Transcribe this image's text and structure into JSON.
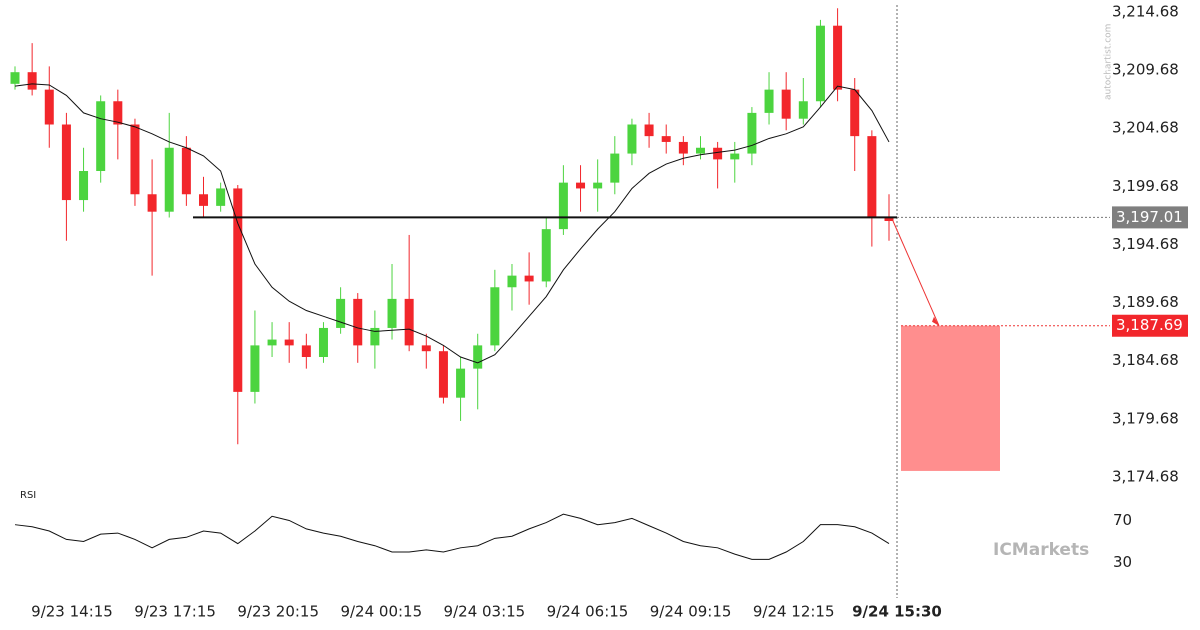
{
  "chart_data": {
    "type": "candlestick",
    "ylim": [
      3173.99,
      3215.71
    ],
    "yticks": [
      {
        "value": 3214.68,
        "label": "3,214.68"
      },
      {
        "value": 3209.68,
        "label": "3,209.68"
      },
      {
        "value": 3204.68,
        "label": "3,204.68"
      },
      {
        "value": 3199.68,
        "label": "3,199.68"
      },
      {
        "value": 3194.68,
        "label": "3,194.68"
      },
      {
        "value": 3189.68,
        "label": "3,189.68"
      },
      {
        "value": 3184.68,
        "label": "3,184.68"
      },
      {
        "value": 3179.68,
        "label": "3,179.68"
      },
      {
        "value": 3174.68,
        "label": "3,174.68"
      }
    ],
    "xlabels": [
      "9/23 14:15",
      "9/23 17:15",
      "9/23 20:15",
      "9/24 00:15",
      "9/24 03:15",
      "9/24 06:15",
      "9/24 09:15",
      "9/24 12:15",
      "9/24 15:30"
    ],
    "up_color": "#4cd43f",
    "down_color": "#f2262b",
    "candles": {
      "open": [
        3208.5,
        3209.5,
        3208,
        3205,
        3198.5,
        3201,
        3207,
        3205,
        3199,
        3197.5,
        3203,
        3199,
        3198,
        3199.5,
        3182,
        3186,
        3186.5,
        3186,
        3185,
        3187.5,
        3190,
        3186,
        3187.5,
        3190,
        3186,
        3185.5,
        3181.5,
        3184,
        3186,
        3191,
        3192,
        3191.5,
        3196,
        3200,
        3199.5,
        3200,
        3202.5,
        3205,
        3204,
        3203.5,
        3202.5,
        3203,
        3202,
        3202.5,
        3206,
        3208,
        3205.5,
        3207,
        3213.5,
        3208,
        3204,
        3197
      ],
      "high": [
        3210,
        3212,
        3210,
        3206,
        3203,
        3207.5,
        3208,
        3205.5,
        3202,
        3206,
        3204,
        3200.5,
        3200,
        3199.8,
        3189,
        3188,
        3188,
        3187,
        3188,
        3191,
        3190.5,
        3189,
        3193,
        3195.5,
        3187,
        3186,
        3185,
        3187,
        3192.5,
        3193,
        3194,
        3197,
        3201.5,
        3201.5,
        3202,
        3204,
        3205.5,
        3206,
        3205,
        3204,
        3204,
        3203.5,
        3203.5,
        3206.5,
        3209.5,
        3209.5,
        3209,
        3214,
        3215,
        3209,
        3204.5,
        3199
      ],
      "low": [
        3208,
        3207.5,
        3203,
        3195,
        3197.5,
        3200,
        3202,
        3198,
        3192,
        3197,
        3198,
        3197,
        3197.5,
        3177.5,
        3181,
        3185,
        3184.5,
        3184,
        3184.5,
        3187,
        3184.5,
        3184,
        3186.5,
        3185.5,
        3184,
        3181,
        3179.5,
        3180.5,
        3185.5,
        3189,
        3189.5,
        3191,
        3195.5,
        3197.5,
        3197.5,
        3199,
        3201.5,
        3203,
        3202.5,
        3201.5,
        3202,
        3199.5,
        3200,
        3201.5,
        3205,
        3204.5,
        3205,
        3206.5,
        3207,
        3201,
        3194.5,
        3195
      ],
      "close": [
        3209.5,
        3208,
        3205,
        3198.5,
        3201,
        3207,
        3205,
        3199,
        3197.5,
        3203,
        3199,
        3198,
        3199.5,
        3182,
        3186,
        3186.5,
        3186,
        3185,
        3187.5,
        3190,
        3186,
        3187.5,
        3190,
        3186,
        3185.5,
        3181.5,
        3184,
        3186,
        3191,
        3192,
        3191.5,
        3196,
        3200,
        3199.5,
        3200,
        3202.5,
        3205,
        3204,
        3203.5,
        3202.5,
        3203,
        3202,
        3202.5,
        3206,
        3208,
        3205.5,
        3207,
        3213.5,
        3208,
        3204,
        3197,
        3196.7
      ]
    },
    "moving_average": [
      3208.3,
      3208.5,
      3208.4,
      3207.5,
      3206,
      3205.5,
      3205.2,
      3204.8,
      3204.2,
      3203.5,
      3203,
      3202.3,
      3201,
      3196.5,
      3193,
      3191,
      3189.8,
      3189,
      3188.5,
      3188,
      3187.5,
      3187.2,
      3187.3,
      3187.4,
      3186.8,
      3186,
      3185,
      3184.5,
      3185.2,
      3186.8,
      3188.5,
      3190.2,
      3192.5,
      3194.3,
      3196,
      3197.5,
      3199.5,
      3200.8,
      3201.6,
      3202.1,
      3202.4,
      3202.6,
      3202.8,
      3203.2,
      3203.8,
      3204.2,
      3204.8,
      3206.5,
      3208.3,
      3208,
      3206.2,
      3203.5
    ],
    "support_level": {
      "value": 3197.01,
      "label": "3,197.01"
    },
    "target": {
      "value": 3187.69,
      "label": "3,187.69"
    },
    "target_range_low": 3175.2,
    "rsi": {
      "label": "RSI",
      "ylim": [
        -0.9,
        99
      ],
      "yticks": [
        70,
        30
      ],
      "values": [
        66,
        64,
        60,
        52,
        50,
        57,
        58,
        52,
        44,
        52,
        54,
        60,
        58,
        48,
        60,
        74,
        70,
        62,
        58,
        55,
        50,
        46,
        40,
        40,
        42,
        40,
        44,
        46,
        53,
        55,
        62,
        68,
        76,
        72,
        66,
        68,
        72,
        65,
        58,
        50,
        46,
        44,
        38,
        33,
        33,
        40,
        50,
        66,
        66,
        64,
        58,
        48
      ]
    },
    "watermark": "autochartist.com",
    "logo": "ICMarkets"
  }
}
